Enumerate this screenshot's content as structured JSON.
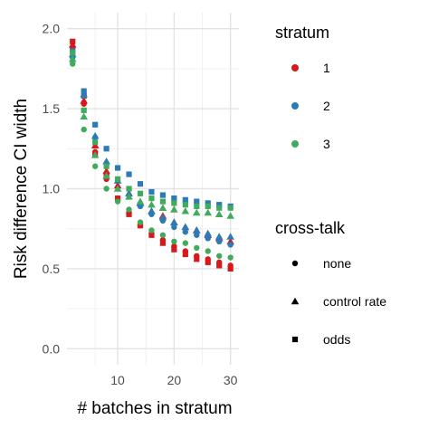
{
  "chart_data": {
    "type": "scatter",
    "xlabel": "# batches in stratum",
    "ylabel": "Risk difference CI width",
    "xlim": [
      1,
      31.5
    ],
    "ylim": [
      -0.1,
      2.1
    ],
    "x_ticks": [
      10,
      20,
      30
    ],
    "y_ticks": [
      0.0,
      0.5,
      1.0,
      1.5,
      2.0
    ],
    "y_tick_labels": [
      "0.0",
      "0.5",
      "1.0",
      "1.5",
      "2.0"
    ],
    "grid": true,
    "legend_position": "right",
    "color_legend": {
      "title": "stratum",
      "entries": [
        {
          "label": "1",
          "color": "#d7191c"
        },
        {
          "label": "2",
          "color": "#2c7bb6"
        },
        {
          "label": "3",
          "color": "#41ab5d"
        }
      ]
    },
    "shape_legend": {
      "title": "cross-talk",
      "entries": [
        {
          "label": "none",
          "shape": "circle"
        },
        {
          "label": "control rate",
          "shape": "triangle"
        },
        {
          "label": "odds",
          "shape": "square"
        }
      ]
    },
    "x": [
      2,
      4,
      6,
      8,
      10,
      12,
      14,
      16,
      18,
      20,
      22,
      24,
      26,
      28,
      30
    ],
    "series": [
      {
        "stratum": "1",
        "crosstalk": "none",
        "values": [
          1.88,
          1.53,
          1.23,
          1.06,
          0.93,
          0.85,
          0.77,
          0.72,
          0.68,
          0.64,
          0.61,
          0.58,
          0.56,
          0.54,
          0.52
        ]
      },
      {
        "stratum": "1",
        "crosstalk": "control rate",
        "values": [
          1.9,
          1.55,
          1.27,
          1.11,
          1.02,
          0.97,
          0.91,
          0.86,
          0.83,
          0.79,
          0.76,
          0.74,
          0.71,
          0.69,
          0.67
        ]
      },
      {
        "stratum": "1",
        "crosstalk": "odds",
        "values": [
          1.92,
          1.58,
          1.22,
          1.08,
          0.94,
          0.84,
          0.77,
          0.71,
          0.66,
          0.62,
          0.59,
          0.56,
          0.54,
          0.52,
          0.5
        ]
      },
      {
        "stratum": "2",
        "crosstalk": "none",
        "values": [
          1.82,
          1.58,
          1.32,
          1.16,
          1.05,
          0.96,
          0.89,
          0.84,
          0.8,
          0.76,
          0.73,
          0.71,
          0.69,
          0.67,
          0.65
        ]
      },
      {
        "stratum": "2",
        "crosstalk": "control rate",
        "values": [
          1.84,
          1.59,
          1.33,
          1.17,
          1.05,
          0.97,
          0.91,
          0.86,
          0.82,
          0.79,
          0.76,
          0.74,
          0.72,
          0.7,
          0.7
        ]
      },
      {
        "stratum": "2",
        "crosstalk": "odds",
        "values": [
          1.86,
          1.61,
          1.4,
          1.25,
          1.13,
          1.09,
          1.03,
          0.98,
          0.96,
          0.94,
          0.93,
          0.92,
          0.91,
          0.9,
          0.89
        ]
      },
      {
        "stratum": "3",
        "crosstalk": "none",
        "values": [
          1.78,
          1.37,
          1.14,
          1.0,
          0.92,
          0.87,
          0.79,
          0.74,
          0.71,
          0.67,
          0.66,
          0.63,
          0.61,
          0.58,
          0.57
        ]
      },
      {
        "stratum": "3",
        "crosstalk": "control rate",
        "values": [
          1.81,
          1.45,
          1.21,
          1.08,
          1.0,
          0.95,
          0.92,
          0.9,
          0.88,
          0.87,
          0.86,
          0.85,
          0.85,
          0.84,
          0.83
        ]
      },
      {
        "stratum": "3",
        "crosstalk": "odds",
        "values": [
          1.85,
          1.49,
          1.29,
          1.14,
          1.06,
          1.0,
          0.97,
          0.94,
          0.92,
          0.91,
          0.9,
          0.89,
          0.89,
          0.88,
          0.88
        ]
      }
    ]
  }
}
